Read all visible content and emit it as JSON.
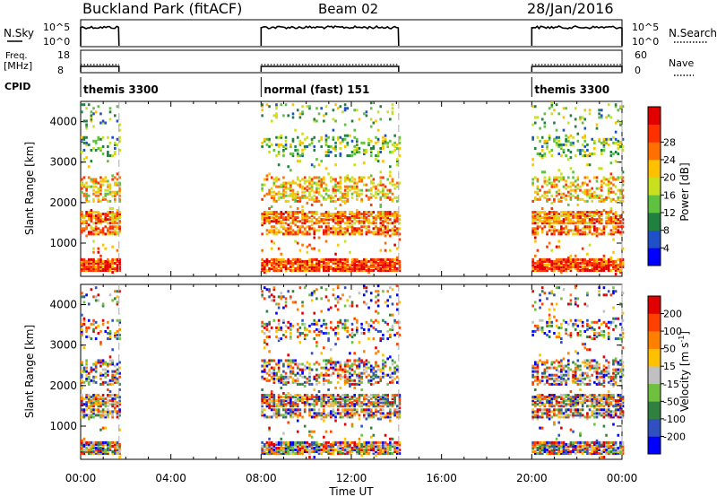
{
  "header": {
    "station": "Buckland Park (fitACF)",
    "beam": "Beam 02",
    "date": "28/Jan/2016"
  },
  "noise_panel": {
    "left_label": "N.Sky",
    "right_label": "N.Search",
    "ticks_left": [
      "10^5",
      "10^0"
    ],
    "ticks_right": [
      "10^5",
      "10^0"
    ]
  },
  "freq_panel": {
    "left_label_1": "Freq.",
    "left_label_2": "[MHz]",
    "right_label": "Nave",
    "ticks_left": [
      "18",
      "8"
    ],
    "ticks_right": [
      "60",
      "0"
    ]
  },
  "cpid_panel": {
    "label": "CPID",
    "segments": [
      {
        "name": "themis 3300",
        "start": 0.0,
        "end": 1.7
      },
      {
        "name": "normal (fast) 151",
        "start": 8.0,
        "end": 14.1
      },
      {
        "name": "themis 3300",
        "start": 20.0,
        "end": 24.0
      }
    ]
  },
  "x_axis": {
    "label": "Time UT",
    "ticks": [
      "00:00",
      "04:00",
      "08:00",
      "12:00",
      "16:00",
      "20:00",
      "00:00"
    ]
  },
  "power_panel": {
    "ylabel": "Slant Range [km]",
    "yticks": [
      "1000",
      "2000",
      "3000",
      "4000"
    ],
    "colorbar_label": "Power [dB]",
    "colorbar_ticks": [
      "4",
      "8",
      "12",
      "16",
      "20",
      "24",
      "28"
    ],
    "colors": [
      "#0000ff",
      "#2050c8",
      "#208040",
      "#60c040",
      "#c8e020",
      "#ffc000",
      "#ff7000",
      "#ff3000",
      "#e00000"
    ]
  },
  "velocity_panel": {
    "ylabel": "Slant Range [km]",
    "yticks": [
      "1000",
      "2000",
      "3000",
      "4000"
    ],
    "colorbar_label": "Velocity [m s^-1]",
    "colorbar_ticks": [
      "200",
      "100",
      "50",
      "15",
      "-15",
      "-50",
      "-100",
      "-200"
    ],
    "colors": [
      "#0000ff",
      "#3050c0",
      "#308040",
      "#70c040",
      "#c0c0c0",
      "#ffc000",
      "#ff8000",
      "#ff4000",
      "#e00000"
    ]
  },
  "chart_data": {
    "type": "heatmap",
    "x_range_hours": [
      0,
      24
    ],
    "y_range_km": [
      180,
      4500
    ],
    "coverage_hours": [
      [
        0.0,
        1.7
      ],
      [
        8.0,
        14.1
      ],
      [
        20.0,
        24.0
      ]
    ],
    "grid": false
  }
}
